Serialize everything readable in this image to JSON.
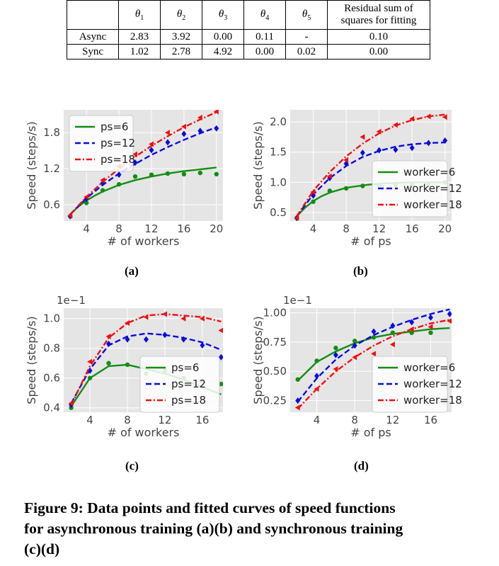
{
  "table": {
    "headers": [
      "θ1",
      "θ2",
      "θ3",
      "θ4",
      "θ5"
    ],
    "residual_header": [
      "Residual sum of",
      "squares for fitting"
    ],
    "rows": [
      {
        "label": "Async",
        "values": [
          "2.83",
          "3.92",
          "0.00",
          "0.11",
          "-"
        ],
        "residual": "0.10"
      },
      {
        "label": "Sync",
        "values": [
          "1.02",
          "2.78",
          "4.92",
          "0.00",
          "0.02"
        ],
        "residual": "0.00"
      }
    ]
  },
  "panel_labels": [
    "(a)",
    "(b)",
    "(c)",
    "(d)"
  ],
  "caption": {
    "line1": "Figure 9: Data points and fitted curves of speed functions",
    "line2": "for asynchronous training (a)(b) and synchronous training",
    "line3": "(c)(d)"
  },
  "colors": {
    "green": "#138d13",
    "blue": "#0b0bdd",
    "red": "#ee1111",
    "bg": "#e5e5e5"
  },
  "chart_data": [
    {
      "type": "line",
      "panel": "a",
      "xlabel": "# of workers",
      "ylabel": "Speed (steps/s)",
      "xlim": [
        1.2,
        20.8
      ],
      "ylim": [
        0.33,
        2.18
      ],
      "xticks": [
        4,
        8,
        12,
        16,
        20
      ],
      "yticks": [
        0.6,
        1.2,
        1.8
      ],
      "ytick_labels": [
        "0.6",
        "1.2",
        "1.8"
      ],
      "multiplier": "",
      "legend": "top-left",
      "series": [
        {
          "name": "ps=6",
          "color": "green",
          "dash": "solid",
          "marker": "circle",
          "points_x": [
            2,
            4,
            6,
            8,
            10,
            12,
            14,
            16,
            18,
            20
          ],
          "points_y": [
            0.41,
            0.63,
            0.84,
            0.94,
            1.07,
            1.1,
            1.12,
            1.11,
            1.13,
            1.11
          ],
          "fit_x": [
            2,
            3,
            4,
            5,
            6,
            8,
            10,
            12,
            14,
            16,
            18,
            20
          ],
          "fit_y": [
            0.44,
            0.57,
            0.67,
            0.75,
            0.82,
            0.93,
            1.01,
            1.07,
            1.12,
            1.16,
            1.19,
            1.22
          ]
        },
        {
          "name": "ps=12",
          "color": "blue",
          "dash": "dashed",
          "marker": "diamond",
          "points_x": [
            2,
            4,
            6,
            8,
            10,
            12,
            14,
            16,
            18,
            20
          ],
          "points_y": [
            0.41,
            0.7,
            0.96,
            1.1,
            1.3,
            1.51,
            1.64,
            1.78,
            1.83,
            1.87
          ],
          "fit_x": [
            2,
            4,
            6,
            8,
            10,
            12,
            14,
            16,
            18,
            20
          ],
          "fit_y": [
            0.44,
            0.71,
            0.93,
            1.12,
            1.28,
            1.43,
            1.56,
            1.68,
            1.79,
            1.89
          ]
        },
        {
          "name": "ps=18",
          "color": "red",
          "dash": "dashdot",
          "marker": "triangle-left",
          "points_x": [
            2,
            4,
            6,
            8,
            10,
            12,
            14,
            16,
            18,
            20
          ],
          "points_y": [
            0.42,
            0.73,
            1.01,
            1.24,
            1.44,
            1.61,
            1.8,
            1.9,
            2.05,
            2.15
          ],
          "fit_x": [
            2,
            4,
            6,
            8,
            10,
            12,
            14,
            16,
            18,
            20
          ],
          "fit_y": [
            0.44,
            0.73,
            0.98,
            1.2,
            1.4,
            1.58,
            1.74,
            1.89,
            2.02,
            2.14
          ]
        }
      ]
    },
    {
      "type": "line",
      "panel": "b",
      "xlabel": "# of ps",
      "ylabel": "Speed (steps/s)",
      "xlim": [
        1.2,
        20.8
      ],
      "ylim": [
        0.36,
        2.2
      ],
      "xticks": [
        4,
        8,
        12,
        16,
        20
      ],
      "yticks": [
        0.5,
        1.0,
        1.5,
        2.0
      ],
      "ytick_labels": [
        "0.5",
        "1.0",
        "1.5",
        "2.0"
      ],
      "multiplier": "",
      "legend": "bottom-right",
      "series": [
        {
          "name": "worker=6",
          "color": "green",
          "dash": "solid",
          "marker": "circle",
          "points_x": [
            2,
            4,
            6,
            8,
            10,
            12,
            14,
            16,
            18,
            20
          ],
          "points_y": [
            0.41,
            0.68,
            0.86,
            0.9,
            0.94,
            0.95,
            0.96,
            0.96,
            0.97,
            1.0
          ],
          "fit_x": [
            2,
            3,
            4,
            5,
            6,
            8,
            10,
            12,
            14,
            16,
            18,
            20
          ],
          "fit_y": [
            0.44,
            0.58,
            0.69,
            0.77,
            0.83,
            0.91,
            0.95,
            0.98,
            0.99,
            1.0,
            1.0,
            1.0
          ]
        },
        {
          "name": "worker=12",
          "color": "blue",
          "dash": "dashed",
          "marker": "diamond",
          "points_x": [
            2,
            4,
            6,
            8,
            10,
            12,
            14,
            16,
            18,
            20
          ],
          "points_y": [
            0.41,
            0.78,
            1.07,
            1.31,
            1.49,
            1.53,
            1.54,
            1.57,
            1.65,
            1.69
          ],
          "fit_x": [
            2,
            4,
            6,
            8,
            10,
            12,
            14,
            16,
            18,
            20
          ],
          "fit_y": [
            0.44,
            0.8,
            1.07,
            1.27,
            1.42,
            1.52,
            1.59,
            1.63,
            1.65,
            1.66
          ]
        },
        {
          "name": "worker=18",
          "color": "red",
          "dash": "dashdot",
          "marker": "triangle-left",
          "points_x": [
            2,
            4,
            6,
            8,
            10,
            12,
            14,
            16,
            18,
            20
          ],
          "points_y": [
            0.41,
            0.84,
            1.1,
            1.37,
            1.75,
            1.84,
            1.95,
            2.05,
            2.09,
            2.08
          ],
          "fit_x": [
            2,
            4,
            6,
            8,
            10,
            12,
            14,
            16,
            18,
            20
          ],
          "fit_y": [
            0.44,
            0.86,
            1.17,
            1.43,
            1.64,
            1.81,
            1.94,
            2.03,
            2.09,
            2.12
          ]
        }
      ]
    },
    {
      "type": "line",
      "panel": "c",
      "xlabel": "# of workers",
      "ylabel": "Speed (steps/s)",
      "xlim": [
        1.2,
        18.2
      ],
      "ylim": [
        0.37,
        1.07
      ],
      "xticks": [
        4,
        8,
        12,
        16
      ],
      "yticks": [
        0.4,
        0.6,
        0.8,
        1.0
      ],
      "ytick_labels": [
        "0.4",
        "0.6",
        "0.8",
        "1.0"
      ],
      "multiplier": "1e−1",
      "legend": "bottom-right",
      "series": [
        {
          "name": "ps=6",
          "color": "green",
          "dash": "solid",
          "marker": "circle",
          "points_x": [
            2,
            4,
            6,
            8,
            10,
            12,
            14,
            16,
            18
          ],
          "points_y": [
            0.4,
            0.6,
            0.7,
            0.69,
            0.63,
            0.65,
            0.6,
            0.58,
            0.56
          ],
          "fit_x": [
            2,
            4,
            6,
            8,
            10,
            12,
            14,
            16,
            18
          ],
          "fit_y": [
            0.41,
            0.6,
            0.68,
            0.69,
            0.66,
            0.63,
            0.59,
            0.54,
            0.49
          ]
        },
        {
          "name": "ps=12",
          "color": "blue",
          "dash": "dashed",
          "marker": "diamond",
          "points_x": [
            2,
            4,
            6,
            8,
            10,
            12,
            14,
            16,
            18
          ],
          "points_y": [
            0.42,
            0.65,
            0.83,
            0.86,
            0.86,
            0.89,
            0.86,
            0.82,
            0.74
          ],
          "fit_x": [
            2,
            4,
            6,
            8,
            10,
            12,
            14,
            16,
            18
          ],
          "fit_y": [
            0.43,
            0.66,
            0.82,
            0.88,
            0.9,
            0.89,
            0.87,
            0.84,
            0.79
          ]
        },
        {
          "name": "ps=18",
          "color": "red",
          "dash": "dashdot",
          "marker": "triangle-left",
          "points_x": [
            2,
            4,
            6,
            8,
            10,
            12,
            14,
            16,
            18
          ],
          "points_y": [
            0.43,
            0.71,
            0.88,
            0.97,
            1.01,
            1.03,
            1.0,
            1.0,
            0.92
          ],
          "fit_x": [
            2,
            4,
            6,
            8,
            10,
            12,
            14,
            16,
            18
          ],
          "fit_y": [
            0.42,
            0.68,
            0.87,
            0.97,
            1.02,
            1.03,
            1.02,
            1.01,
            0.98
          ]
        }
      ]
    },
    {
      "type": "line",
      "panel": "d",
      "xlabel": "# of ps",
      "ylabel": "Speed (steps/s)",
      "xlim": [
        1.2,
        18.2
      ],
      "ylim": [
        0.15,
        1.04
      ],
      "xticks": [
        4,
        8,
        12,
        16
      ],
      "yticks": [
        0.25,
        0.5,
        0.75,
        1.0
      ],
      "ytick_labels": [
        "0.25",
        "0.50",
        "0.75",
        "1.00"
      ],
      "multiplier": "1e−1",
      "legend": "bottom-right",
      "series": [
        {
          "name": "worker=6",
          "color": "green",
          "dash": "solid",
          "marker": "circle",
          "points_x": [
            2,
            4,
            6,
            8,
            10,
            12,
            14,
            16
          ],
          "points_y": [
            0.43,
            0.59,
            0.7,
            0.76,
            0.79,
            0.83,
            0.83,
            0.83
          ],
          "fit_x": [
            2,
            4,
            6,
            8,
            10,
            12,
            14,
            16,
            18
          ],
          "fit_y": [
            0.42,
            0.58,
            0.67,
            0.74,
            0.79,
            0.82,
            0.84,
            0.86,
            0.87
          ]
        },
        {
          "name": "worker=12",
          "color": "blue",
          "dash": "dashed",
          "marker": "diamond",
          "points_x": [
            2,
            4,
            6,
            8,
            10,
            12,
            14,
            16,
            18
          ],
          "points_y": [
            0.25,
            0.46,
            0.64,
            0.72,
            0.84,
            0.89,
            0.92,
            0.96,
            0.99
          ],
          "fit_x": [
            2,
            4,
            6,
            8,
            10,
            12,
            14,
            16,
            18
          ],
          "fit_y": [
            0.24,
            0.44,
            0.6,
            0.72,
            0.81,
            0.88,
            0.94,
            0.99,
            1.03
          ]
        },
        {
          "name": "worker=18",
          "color": "red",
          "dash": "dashdot",
          "marker": "triangle-left",
          "points_x": [
            2,
            4,
            6,
            8,
            10,
            12,
            14,
            16,
            18
          ],
          "points_y": [
            0.19,
            0.35,
            0.52,
            0.62,
            0.65,
            0.73,
            0.86,
            0.88,
            0.93
          ],
          "fit_x": [
            2,
            4,
            6,
            8,
            10,
            12,
            14,
            16,
            18
          ],
          "fit_y": [
            0.18,
            0.35,
            0.5,
            0.62,
            0.72,
            0.8,
            0.86,
            0.91,
            0.94
          ]
        }
      ]
    }
  ]
}
